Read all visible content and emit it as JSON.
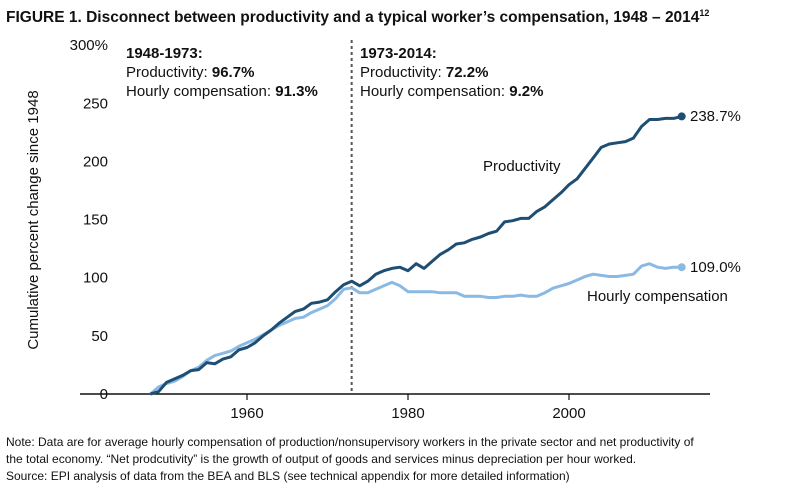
{
  "title": "FIGURE 1. Disconnect between productivity and a typical worker’s compensation, 1948 – 2014",
  "title_superscript": "12",
  "chart_data": {
    "type": "line",
    "title": "FIGURE 1. Disconnect between productivity and a typical worker’s compensation, 1948 – 2014",
    "xlabel": "",
    "ylabel": "Cumulative percent change since 1948",
    "xlim": [
      1945,
      2018
    ],
    "ylim": [
      0,
      300
    ],
    "x_ticks": [
      1960,
      1980,
      2000
    ],
    "x_tick_labels": [
      "1960",
      "1980",
      "2000"
    ],
    "y_ticks": [
      0,
      50,
      100,
      150,
      200,
      250,
      300
    ],
    "y_tick_labels": [
      "0",
      "50",
      "100",
      "150",
      "200",
      "250",
      "300%"
    ],
    "grid": false,
    "x": [
      1948,
      1949,
      1950,
      1951,
      1952,
      1953,
      1954,
      1955,
      1956,
      1957,
      1958,
      1959,
      1960,
      1961,
      1962,
      1963,
      1964,
      1965,
      1966,
      1967,
      1968,
      1969,
      1970,
      1971,
      1972,
      1973,
      1974,
      1975,
      1976,
      1977,
      1978,
      1979,
      1980,
      1981,
      1982,
      1983,
      1984,
      1985,
      1986,
      1987,
      1988,
      1989,
      1990,
      1991,
      1992,
      1993,
      1994,
      1995,
      1996,
      1997,
      1998,
      1999,
      2000,
      2001,
      2002,
      2003,
      2004,
      2005,
      2006,
      2007,
      2008,
      2009,
      2010,
      2011,
      2012,
      2013,
      2014
    ],
    "series": [
      {
        "name": "Productivity",
        "color": "#1f4e73",
        "end_label": "238.7%",
        "values": [
          0,
          2,
          10,
          13,
          16,
          20,
          21,
          27,
          26,
          30,
          32,
          38,
          40,
          44,
          50,
          55,
          61,
          66,
          71,
          73,
          78,
          79,
          81,
          88,
          94,
          97,
          93,
          97,
          103,
          106,
          108,
          109,
          106,
          112,
          108,
          114,
          120,
          124,
          129,
          130,
          133,
          135,
          138,
          140,
          148,
          149,
          151,
          151,
          157,
          161,
          167,
          173,
          180,
          185,
          194,
          203,
          212,
          215,
          216,
          217,
          220,
          230,
          236,
          236,
          237,
          237,
          238.7
        ]
      },
      {
        "name": "Hourly compensation",
        "color": "#8ab9e3",
        "end_label": "109.0%",
        "values": [
          0,
          6,
          9,
          11,
          15,
          20,
          23,
          29,
          33,
          35,
          37,
          41,
          44,
          47,
          51,
          55,
          59,
          62,
          65,
          66,
          70,
          73,
          76,
          82,
          90,
          91.3,
          87,
          87,
          90,
          93,
          96,
          93,
          88,
          88,
          88,
          88,
          87,
          87,
          87,
          84,
          84,
          84,
          83,
          83,
          84,
          84,
          85,
          84,
          84,
          87,
          91,
          93,
          95,
          98,
          101,
          103,
          102,
          101,
          101,
          102,
          103,
          110,
          112,
          109,
          108,
          109,
          109.0
        ]
      }
    ],
    "divider_year": 1973,
    "annotations": {
      "left": {
        "heading": "1948-1973:",
        "prod_label": "Productivity: ",
        "prod_value": "96.7%",
        "comp_label": "Hourly compensation: ",
        "comp_value": "91.3%"
      },
      "right": {
        "heading": "1973-2014:",
        "prod_label": "Productivity: ",
        "prod_value": "72.2%",
        "comp_label": "Hourly compensation: ",
        "comp_value": "9.2%"
      }
    }
  },
  "notes": [
    "Note: Data are for average hourly compensation of production/nonsupervisory workers in the private sector and net productivity of",
    "the total economy. “Net prodcutivity” is the growth of output of goods and services minus depreciation per hour worked.",
    "Source: EPI analysis of data from the BEA and BLS (see technical appendix for more detailed information)"
  ]
}
